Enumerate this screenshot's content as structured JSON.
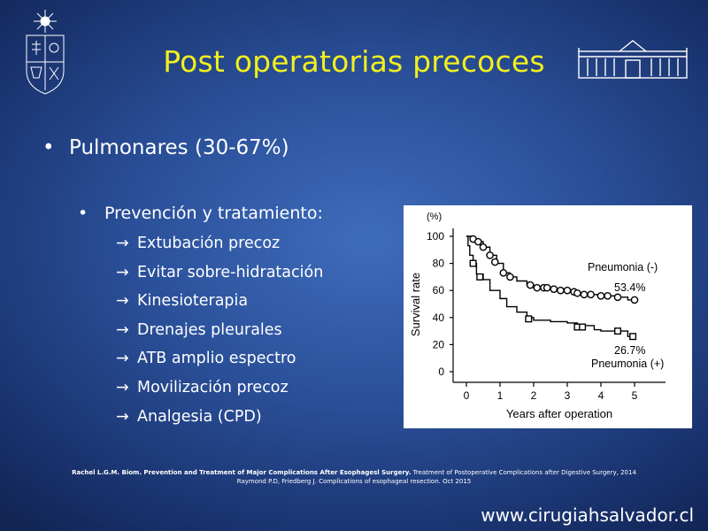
{
  "slide": {
    "title": "Post operatorias precoces",
    "bullet_main": "Pulmonares (30-67%)",
    "bullet_sub": "Prevención y tratamiento:",
    "items": [
      "Extubación precoz",
      "Evitar sobre-hidratación",
      "Kinesioterapia",
      "Drenajes pleurales",
      "ATB amplio espectro",
      "Movilización precoz",
      "Analgesia (CPD)"
    ],
    "bullet_glyph": "•",
    "arrow_glyph": "→",
    "reference_bold": "Rachel L.G.M. Biom. Prevention and Treatment of Major Complications After Esophagesl Surgery.",
    "reference_rest": " Treatment of Postoperative Complications after Digestive Surgery, 2014",
    "reference_line2": "Raymond P.D, Friedberg J. Complications of esophageal resection. Oct 2015",
    "website": "www.cirugiahsalvador.cl",
    "colors": {
      "title": "#f2ef1e",
      "text": "#ffffff",
      "background": "#2a4f98"
    },
    "icons": {
      "left_logo": "university-crest-icon",
      "right_logo": "hospital-building-icon"
    }
  },
  "chart_data": {
    "type": "line",
    "ylabel": "Survival rate",
    "y_unit": "(%)",
    "xlabel": "Years after operation",
    "xlim": [
      0,
      5
    ],
    "ylim": [
      0,
      100
    ],
    "x_ticks": [
      0,
      1,
      2,
      3,
      4,
      5
    ],
    "y_ticks": [
      0,
      20,
      40,
      60,
      80,
      100
    ],
    "grid": false,
    "series": [
      {
        "name": "Pneumonia (-)",
        "end_label": "53.4%",
        "marker": "circle",
        "points": [
          [
            0,
            100
          ],
          [
            0.15,
            98
          ],
          [
            0.3,
            96
          ],
          [
            0.5,
            92
          ],
          [
            0.7,
            86
          ],
          [
            0.9,
            80
          ],
          [
            1.1,
            73
          ],
          [
            1.3,
            70
          ],
          [
            1.5,
            67
          ],
          [
            1.8,
            64
          ],
          [
            2,
            62
          ],
          [
            2.3,
            62
          ],
          [
            2.6,
            60
          ],
          [
            3,
            60
          ],
          [
            3.3,
            58
          ],
          [
            3.6,
            57
          ],
          [
            3.9,
            56
          ],
          [
            4.2,
            56
          ],
          [
            4.5,
            55
          ],
          [
            4.8,
            53
          ],
          [
            5,
            53
          ]
        ],
        "markers": [
          [
            0.2,
            98
          ],
          [
            0.35,
            96
          ],
          [
            0.5,
            92
          ],
          [
            0.7,
            86
          ],
          [
            0.85,
            81
          ],
          [
            1.1,
            73
          ],
          [
            1.3,
            70
          ],
          [
            1.9,
            64
          ],
          [
            2.1,
            62
          ],
          [
            2.3,
            62
          ],
          [
            2.4,
            62
          ],
          [
            2.6,
            61
          ],
          [
            2.8,
            60
          ],
          [
            3,
            60
          ],
          [
            3.2,
            59
          ],
          [
            3.3,
            58
          ],
          [
            3.5,
            57
          ],
          [
            3.7,
            57
          ],
          [
            4,
            56
          ],
          [
            4.2,
            56
          ],
          [
            4.5,
            55
          ],
          [
            5,
            53
          ]
        ]
      },
      {
        "name": "Pneumonia (+)",
        "end_label": "26.7%",
        "marker": "square",
        "points": [
          [
            0,
            100
          ],
          [
            0.05,
            93
          ],
          [
            0.1,
            86
          ],
          [
            0.2,
            80
          ],
          [
            0.3,
            72
          ],
          [
            0.5,
            68
          ],
          [
            0.7,
            60
          ],
          [
            1,
            54
          ],
          [
            1.2,
            48
          ],
          [
            1.5,
            44
          ],
          [
            1.8,
            40
          ],
          [
            2,
            38
          ],
          [
            2.5,
            37
          ],
          [
            3,
            36
          ],
          [
            3.3,
            34
          ],
          [
            3.8,
            31
          ],
          [
            4,
            30
          ],
          [
            4.5,
            30
          ],
          [
            4.8,
            26
          ],
          [
            5,
            26
          ]
        ],
        "markers": [
          [
            0.2,
            80
          ],
          [
            0.4,
            70
          ],
          [
            1.85,
            39
          ],
          [
            3.3,
            33
          ],
          [
            3.45,
            33
          ],
          [
            4.5,
            30
          ],
          [
            4.95,
            26
          ]
        ]
      }
    ]
  }
}
